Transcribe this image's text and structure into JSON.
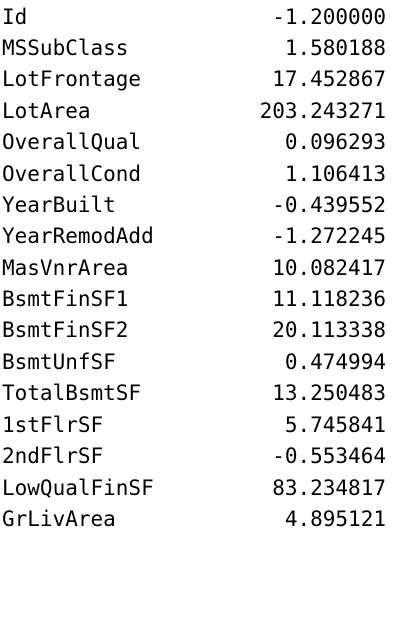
{
  "rows": [
    {
      "name": "Id",
      "value": "-1.200000"
    },
    {
      "name": "MSSubClass",
      "value": "1.580188"
    },
    {
      "name": "LotFrontage",
      "value": "17.452867"
    },
    {
      "name": "LotArea",
      "value": "203.243271"
    },
    {
      "name": "OverallQual",
      "value": "0.096293"
    },
    {
      "name": "OverallCond",
      "value": "1.106413"
    },
    {
      "name": "YearBuilt",
      "value": "-0.439552"
    },
    {
      "name": "YearRemodAdd",
      "value": "-1.272245"
    },
    {
      "name": "MasVnrArea",
      "value": "10.082417"
    },
    {
      "name": "BsmtFinSF1",
      "value": "11.118236"
    },
    {
      "name": "BsmtFinSF2",
      "value": "20.113338"
    },
    {
      "name": "BsmtUnfSF",
      "value": "0.474994"
    },
    {
      "name": "TotalBsmtSF",
      "value": "13.250483"
    },
    {
      "name": "1stFlrSF",
      "value": "5.745841"
    },
    {
      "name": "2ndFlrSF",
      "value": "-0.553464"
    },
    {
      "name": "LowQualFinSF",
      "value": "83.234817"
    },
    {
      "name": "GrLivArea",
      "value": "4.895121"
    }
  ]
}
